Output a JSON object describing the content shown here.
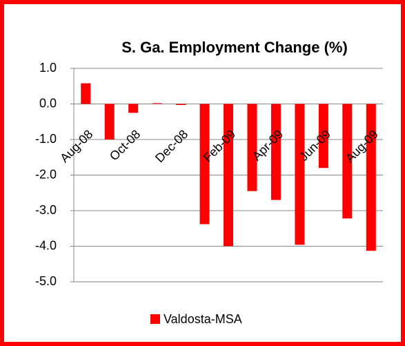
{
  "chart_data": {
    "type": "bar",
    "title": "S. Ga. Employment Change (%)",
    "categories": [
      "Aug-08",
      null,
      "Oct-08",
      null,
      "Dec-08",
      null,
      "Feb-09",
      null,
      "Apr-09",
      null,
      "Jun-09",
      null,
      "Aug-09"
    ],
    "series": [
      {
        "name": "Valdosta-MSA",
        "color": "#ff0000",
        "values": [
          0.58,
          -1.0,
          -0.25,
          0.02,
          -0.03,
          -3.38,
          -4.0,
          -2.45,
          -2.7,
          -3.96,
          -1.8,
          -3.22,
          -4.13
        ]
      }
    ],
    "ylim": [
      -5,
      1
    ],
    "yticks": [
      {
        "value": -5,
        "label": "-5.0"
      },
      {
        "value": -4,
        "label": "-4.0"
      },
      {
        "value": -3,
        "label": "-3.0"
      },
      {
        "value": -2,
        "label": "-2.0"
      },
      {
        "value": -1,
        "label": "-1.0"
      },
      {
        "value": 0,
        "label": "0.0"
      },
      {
        "value": 1,
        "label": "1.0"
      }
    ],
    "grid": true,
    "legend": "bottom"
  }
}
